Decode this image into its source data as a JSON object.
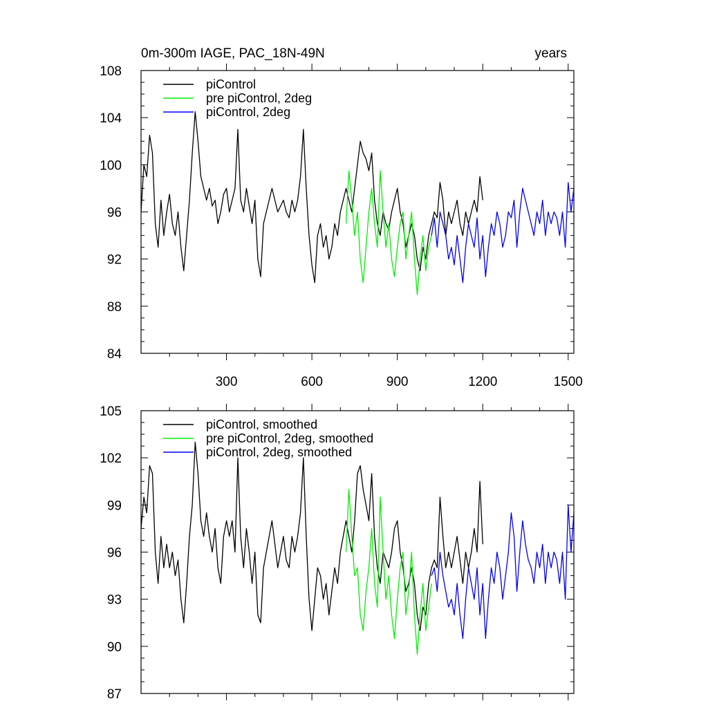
{
  "header": {
    "title": "0m-300m IAGE, PAC_18N-49N",
    "units": "years"
  },
  "chart_data": [
    {
      "type": "line",
      "title": "0m-300m IAGE, PAC_18N-49N",
      "units_label": "years",
      "xlim": [
        0,
        1520
      ],
      "ylim": [
        84,
        108
      ],
      "xticks": [
        300,
        600,
        900,
        1200,
        1500
      ],
      "xtick_labels": [
        "300",
        "600",
        "900",
        "1200",
        "1500"
      ],
      "yticks": [
        84,
        88,
        92,
        96,
        100,
        104,
        108
      ],
      "ytick_labels": [
        "84",
        "88",
        "92",
        "96",
        "100",
        "104",
        "108"
      ],
      "grid": false,
      "legend_position": "top-left",
      "series": [
        {
          "name": "piControl",
          "color": "#000000",
          "x": [
            0,
            10,
            20,
            30,
            40,
            50,
            60,
            70,
            80,
            90,
            100,
            110,
            120,
            130,
            140,
            150,
            160,
            170,
            180,
            190,
            200,
            210,
            220,
            230,
            240,
            250,
            260,
            270,
            280,
            290,
            300,
            310,
            320,
            330,
            340,
            350,
            360,
            370,
            380,
            390,
            400,
            410,
            420,
            430,
            440,
            450,
            460,
            470,
            480,
            490,
            500,
            510,
            520,
            530,
            540,
            550,
            560,
            570,
            580,
            590,
            600,
            610,
            620,
            630,
            640,
            650,
            660,
            670,
            680,
            690,
            700,
            710,
            720,
            730,
            740,
            750,
            760,
            770,
            780,
            790,
            800,
            810,
            820,
            830,
            840,
            850,
            860,
            870,
            880,
            890,
            900,
            910,
            920,
            930,
            940,
            950,
            960,
            970,
            980,
            990,
            1000,
            1010,
            1020,
            1030,
            1040,
            1050,
            1060,
            1070,
            1080,
            1090,
            1100,
            1110,
            1120,
            1130,
            1140,
            1150,
            1160,
            1170,
            1180,
            1190,
            1200
          ],
          "values": [
            96.0,
            100.0,
            99.0,
            102.5,
            101.0,
            95.0,
            93.0,
            97.0,
            94.0,
            96.0,
            97.5,
            95.0,
            94.0,
            96.0,
            93.0,
            91.0,
            94.0,
            97.0,
            101.0,
            104.5,
            102.0,
            99.0,
            98.0,
            97.0,
            98.0,
            96.5,
            97.0,
            95.0,
            96.0,
            97.5,
            98.0,
            96.0,
            97.0,
            98.0,
            103.0,
            97.0,
            96.0,
            98.0,
            96.5,
            95.0,
            97.0,
            92.0,
            90.5,
            95.0,
            96.0,
            97.0,
            98.0,
            97.0,
            96.0,
            96.5,
            97.0,
            96.0,
            95.5,
            97.0,
            96.0,
            97.0,
            99.0,
            103.0,
            98.0,
            94.0,
            91.5,
            90.0,
            94.0,
            95.0,
            93.0,
            94.0,
            92.0,
            93.0,
            95.0,
            94.0,
            96.0,
            97.0,
            98.0,
            97.0,
            96.0,
            98.0,
            100.0,
            102.0,
            101.0,
            100.5,
            99.5,
            101.0,
            97.0,
            95.0,
            94.0,
            96.0,
            95.0,
            94.5,
            96.0,
            97.0,
            98.0,
            96.0,
            95.0,
            93.0,
            94.0,
            95.0,
            94.0,
            92.0,
            91.0,
            93.0,
            92.0,
            94.0,
            95.0,
            96.0,
            95.5,
            98.5,
            97.0,
            94.0,
            96.0,
            95.0,
            96.0,
            97.0,
            95.0,
            94.0,
            96.0,
            95.0,
            96.0,
            97.0,
            96.0,
            99.0,
            97.0
          ]
        },
        {
          "name": "pre piControl, 2deg",
          "color": "#00ee00",
          "x": [
            720,
            730,
            740,
            750,
            760,
            770,
            780,
            790,
            800,
            810,
            820,
            830,
            840,
            850,
            860,
            870,
            880,
            890,
            900,
            910,
            920,
            930,
            940,
            950,
            960,
            970,
            980,
            990,
            1000,
            1010,
            1020
          ],
          "values": [
            95.0,
            99.5,
            97.0,
            94.0,
            96.0,
            92.0,
            90.0,
            93.0,
            96.0,
            98.0,
            95.0,
            93.0,
            99.5,
            96.0,
            93.0,
            95.0,
            92.0,
            90.5,
            93.0,
            95.0,
            96.0,
            92.0,
            94.0,
            96.0,
            92.0,
            89.0,
            92.0,
            94.0,
            91.0,
            93.0,
            94.0
          ]
        },
        {
          "name": "piControl, 2deg",
          "color": "#0000ee",
          "x": [
            1020,
            1030,
            1040,
            1050,
            1060,
            1070,
            1080,
            1090,
            1100,
            1110,
            1120,
            1130,
            1140,
            1150,
            1160,
            1170,
            1180,
            1190,
            1200,
            1210,
            1220,
            1230,
            1240,
            1250,
            1260,
            1270,
            1280,
            1290,
            1300,
            1310,
            1320,
            1330,
            1340,
            1350,
            1360,
            1370,
            1380,
            1390,
            1400,
            1410,
            1420,
            1430,
            1440,
            1450,
            1460,
            1470,
            1480,
            1490,
            1500,
            1510,
            1520
          ],
          "values": [
            94.0,
            95.5,
            93.0,
            96.0,
            95.0,
            94.0,
            92.0,
            93.0,
            91.5,
            94.0,
            92.0,
            90.0,
            93.0,
            95.0,
            94.0,
            93.0,
            95.5,
            92.0,
            94.0,
            90.5,
            93.0,
            95.0,
            94.0,
            96.0,
            95.0,
            93.0,
            94.0,
            96.0,
            95.5,
            97.0,
            93.0,
            96.0,
            98.0,
            97.0,
            96.0,
            95.0,
            94.0,
            96.0,
            95.0,
            97.0,
            94.0,
            96.0,
            95.0,
            96.0,
            95.5,
            94.0,
            96.0,
            93.0,
            98.5,
            96.0,
            98.0
          ]
        }
      ]
    },
    {
      "type": "line",
      "xlim": [
        0,
        1520
      ],
      "ylim": [
        87,
        105
      ],
      "xticks": [
        300,
        600,
        900,
        1200,
        1500
      ],
      "yticks": [
        87,
        90,
        93,
        96,
        99,
        102,
        105
      ],
      "ytick_labels": [
        "87",
        "90",
        "93",
        "96",
        "99",
        "102",
        "105"
      ],
      "grid": false,
      "legend_position": "top-left",
      "series": [
        {
          "name": "piControl, smoothed",
          "color": "#000000",
          "x": [
            0,
            10,
            20,
            30,
            40,
            50,
            60,
            70,
            80,
            90,
            100,
            110,
            120,
            130,
            140,
            150,
            160,
            170,
            180,
            190,
            200,
            210,
            220,
            230,
            240,
            250,
            260,
            270,
            280,
            290,
            300,
            310,
            320,
            330,
            340,
            350,
            360,
            370,
            380,
            390,
            400,
            410,
            420,
            430,
            440,
            450,
            460,
            470,
            480,
            490,
            500,
            510,
            520,
            530,
            540,
            550,
            560,
            570,
            580,
            590,
            600,
            610,
            620,
            630,
            640,
            650,
            660,
            670,
            680,
            690,
            700,
            710,
            720,
            730,
            740,
            750,
            760,
            770,
            780,
            790,
            800,
            810,
            820,
            830,
            840,
            850,
            860,
            870,
            880,
            890,
            900,
            910,
            920,
            930,
            940,
            950,
            960,
            970,
            980,
            990,
            1000,
            1010,
            1020,
            1030,
            1040,
            1050,
            1060,
            1070,
            1080,
            1090,
            1100,
            1110,
            1120,
            1130,
            1140,
            1150,
            1160,
            1170,
            1180,
            1190,
            1200
          ],
          "values": [
            97.5,
            99.5,
            98.5,
            101.5,
            101.0,
            96.0,
            94.0,
            97.0,
            95.0,
            96.5,
            95.0,
            96.0,
            94.5,
            95.5,
            93.0,
            91.5,
            94.0,
            97.0,
            99.0,
            103.0,
            101.0,
            98.0,
            97.0,
            98.5,
            97.0,
            96.0,
            97.5,
            95.0,
            94.0,
            97.0,
            98.0,
            97.0,
            98.0,
            96.0,
            102.0,
            97.0,
            95.0,
            97.5,
            96.0,
            94.0,
            96.0,
            92.0,
            91.5,
            95.0,
            96.0,
            97.0,
            98.0,
            96.5,
            95.0,
            96.0,
            97.0,
            95.5,
            95.0,
            97.0,
            96.0,
            97.0,
            98.5,
            102.0,
            97.0,
            93.0,
            91.0,
            93.0,
            95.0,
            94.5,
            93.0,
            94.0,
            92.0,
            93.5,
            95.0,
            94.0,
            96.0,
            97.0,
            98.0,
            97.0,
            96.0,
            98.0,
            101.0,
            101.5,
            100.0,
            99.0,
            98.0,
            101.0,
            97.0,
            95.0,
            94.0,
            96.0,
            95.5,
            95.0,
            96.0,
            97.5,
            98.0,
            96.0,
            95.0,
            93.5,
            94.0,
            95.0,
            94.0,
            92.0,
            91.0,
            92.5,
            92.0,
            94.0,
            95.0,
            95.5,
            95.0,
            99.5,
            97.0,
            95.0,
            96.0,
            95.0,
            96.0,
            97.0,
            95.5,
            94.0,
            96.0,
            95.0,
            96.0,
            97.5,
            96.0,
            100.5,
            96.5
          ]
        },
        {
          "name": "pre piControl, 2deg, smoothed",
          "color": "#00ee00",
          "x": [
            720,
            730,
            740,
            750,
            760,
            770,
            780,
            790,
            800,
            810,
            820,
            830,
            840,
            850,
            860,
            870,
            880,
            890,
            900,
            910,
            920,
            930,
            940,
            950,
            960,
            970,
            980,
            990,
            1000,
            1010,
            1020
          ],
          "values": [
            96.0,
            100.0,
            97.0,
            94.5,
            95.0,
            92.0,
            91.0,
            93.5,
            95.0,
            97.5,
            94.0,
            92.5,
            99.5,
            96.0,
            93.0,
            94.5,
            92.0,
            90.5,
            93.0,
            95.0,
            96.0,
            92.0,
            93.5,
            96.0,
            92.0,
            89.5,
            92.0,
            94.0,
            91.0,
            92.5,
            94.0
          ]
        },
        {
          "name": "piControl, 2deg, smoothed",
          "color": "#0000ee",
          "x": [
            1020,
            1030,
            1040,
            1050,
            1060,
            1070,
            1080,
            1090,
            1100,
            1110,
            1120,
            1130,
            1140,
            1150,
            1160,
            1170,
            1180,
            1190,
            1200,
            1210,
            1220,
            1230,
            1240,
            1250,
            1260,
            1270,
            1280,
            1290,
            1300,
            1310,
            1320,
            1330,
            1340,
            1350,
            1360,
            1370,
            1380,
            1390,
            1400,
            1410,
            1420,
            1430,
            1440,
            1450,
            1460,
            1470,
            1480,
            1490,
            1500,
            1510,
            1520
          ],
          "values": [
            94.5,
            95.0,
            93.5,
            96.0,
            94.5,
            93.5,
            92.5,
            93.0,
            92.0,
            94.0,
            92.0,
            90.5,
            93.0,
            95.0,
            94.0,
            93.0,
            95.0,
            92.0,
            94.0,
            90.5,
            93.0,
            95.0,
            94.0,
            96.0,
            95.0,
            93.0,
            94.5,
            96.0,
            98.5,
            97.0,
            93.5,
            96.0,
            98.0,
            96.5,
            95.5,
            95.0,
            94.0,
            96.0,
            95.0,
            96.5,
            94.0,
            96.0,
            95.0,
            96.0,
            95.5,
            94.0,
            96.0,
            93.0,
            99.0,
            96.0,
            98.5
          ]
        }
      ]
    }
  ]
}
